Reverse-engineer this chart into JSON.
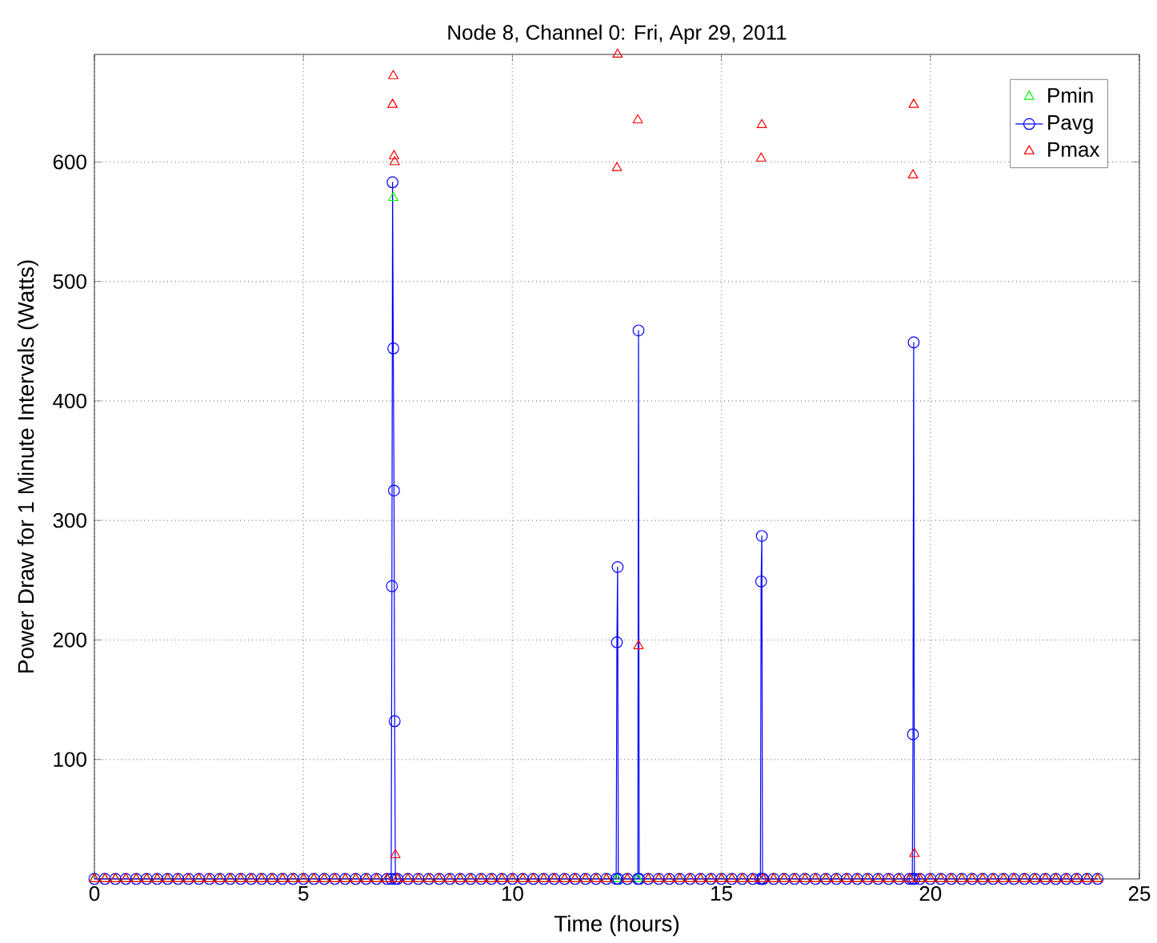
{
  "chart_data": {
    "type": "line",
    "title": "Node 8, Channel 0: Fri, Apr 29, 2011",
    "xlabel": "Time (hours)",
    "ylabel": "Power Draw for 1 Minute Intervals (Watts)",
    "xlim": [
      0,
      25
    ],
    "ylim": [
      0,
      690
    ],
    "xticks": [
      0,
      5,
      10,
      15,
      20,
      25
    ],
    "yticks": [
      100,
      200,
      300,
      400,
      500,
      600
    ],
    "grid": true,
    "legend": "top right",
    "series": [
      {
        "name": "Pmin",
        "type": "scatter",
        "color": "#00ff00",
        "marker": "triangle",
        "x": [
          0,
          0.25,
          0.5,
          0.75,
          1,
          1.25,
          1.5,
          1.75,
          2,
          2.25,
          2.5,
          2.75,
          3,
          3.25,
          3.5,
          3.75,
          4,
          4.25,
          4.5,
          4.75,
          5,
          5.25,
          5.5,
          5.75,
          6,
          6.25,
          6.5,
          6.75,
          7,
          7.15,
          7.25,
          7.5,
          7.75,
          8,
          8.25,
          8.5,
          8.75,
          9,
          9.25,
          9.5,
          9.75,
          10,
          10.25,
          10.5,
          10.75,
          11,
          11.25,
          11.5,
          11.75,
          12,
          12.25,
          12.5,
          12.75,
          13,
          13.25,
          13.5,
          13.75,
          14,
          14.25,
          14.5,
          14.75,
          15,
          15.25,
          15.5,
          15.75,
          16,
          16.25,
          16.5,
          16.75,
          17,
          17.25,
          17.5,
          17.75,
          18,
          18.25,
          18.5,
          18.75,
          19,
          19.25,
          19.5,
          19.75,
          20,
          20.25,
          20.5,
          20.75,
          21,
          21.25,
          21.5,
          21.75,
          22,
          22.25,
          22.5,
          22.75,
          23,
          23.25,
          23.5,
          23.75,
          24
        ],
        "values": [
          0,
          0,
          0,
          0,
          0,
          0,
          0,
          0,
          0,
          0,
          0,
          0,
          0,
          0,
          0,
          0,
          0,
          0,
          0,
          0,
          0,
          0,
          0,
          0,
          0,
          0,
          0,
          0,
          0,
          570,
          0,
          0,
          0,
          0,
          0,
          0,
          0,
          0,
          0,
          0,
          0,
          0,
          0,
          0,
          0,
          0,
          0,
          0,
          0,
          0,
          0,
          0,
          0,
          0,
          0,
          0,
          0,
          0,
          0,
          0,
          0,
          0,
          0,
          0,
          0,
          0,
          0,
          0,
          0,
          0,
          0,
          0,
          0,
          0,
          0,
          0,
          0,
          0,
          0,
          0,
          0,
          0,
          0,
          0,
          0,
          0,
          0,
          0,
          0,
          0,
          0,
          0,
          0,
          0,
          0,
          0,
          0,
          0
        ]
      },
      {
        "name": "Pavg",
        "color": "#0000ff",
        "marker": "circle",
        "line_style": "solid",
        "x": [
          0,
          0.25,
          0.5,
          0.75,
          1,
          1.25,
          1.5,
          1.75,
          2,
          2.25,
          2.5,
          2.75,
          3,
          3.25,
          3.5,
          3.75,
          4,
          4.25,
          4.5,
          4.75,
          5,
          5.25,
          5.5,
          5.75,
          6,
          6.25,
          6.5,
          6.75,
          7,
          7.1,
          7.117,
          7.133,
          7.15,
          7.167,
          7.183,
          7.2,
          7.25,
          7.5,
          7.75,
          8,
          8.25,
          8.5,
          8.75,
          9,
          9.25,
          9.5,
          9.75,
          10,
          10.25,
          10.5,
          10.75,
          11,
          11.25,
          11.5,
          11.75,
          12,
          12.25,
          12.483,
          12.5,
          12.517,
          12.533,
          12.75,
          13,
          13.017,
          13.033,
          13.25,
          13.5,
          13.75,
          14,
          14.25,
          14.5,
          14.75,
          15,
          15.25,
          15.5,
          15.75,
          15.933,
          15.95,
          15.967,
          15.983,
          16,
          16.25,
          16.5,
          16.75,
          17,
          17.25,
          17.5,
          17.75,
          18,
          18.25,
          18.5,
          18.75,
          19,
          19.25,
          19.5,
          19.567,
          19.583,
          19.6,
          19.617,
          19.75,
          20,
          20.25,
          20.5,
          20.75,
          21,
          21.25,
          21.5,
          21.75,
          22,
          22.25,
          22.5,
          22.75,
          23,
          23.25,
          23.5,
          23.75,
          24
        ],
        "values": [
          0,
          0,
          0,
          0,
          0,
          0,
          0,
          0,
          0,
          0,
          0,
          0,
          0,
          0,
          0,
          0,
          0,
          0,
          0,
          0,
          0,
          0,
          0,
          0,
          0,
          0,
          0,
          0,
          0,
          0,
          245,
          583,
          444,
          325,
          132,
          0,
          0,
          0,
          0,
          0,
          0,
          0,
          0,
          0,
          0,
          0,
          0,
          0,
          0,
          0,
          0,
          0,
          0,
          0,
          0,
          0,
          0,
          0,
          198,
          261,
          0,
          0,
          0,
          459,
          0,
          0,
          0,
          0,
          0,
          0,
          0,
          0,
          0,
          0,
          0,
          0,
          0,
          249,
          287,
          0,
          0,
          0,
          0,
          0,
          0,
          0,
          0,
          0,
          0,
          0,
          0,
          0,
          0,
          0,
          0,
          0,
          121,
          449,
          0,
          0,
          0,
          0,
          0,
          0,
          0,
          0,
          0,
          0,
          0,
          0,
          0,
          0,
          0,
          0,
          0,
          0,
          0
        ]
      },
      {
        "name": "Pmax",
        "type": "scatter",
        "color": "#ff0000",
        "marker": "triangle",
        "x": [
          0,
          0.25,
          0.5,
          0.75,
          1,
          1.25,
          1.5,
          1.75,
          2,
          2.25,
          2.5,
          2.75,
          3,
          3.25,
          3.5,
          3.75,
          4,
          4.25,
          4.5,
          4.75,
          5,
          5.25,
          5.5,
          5.75,
          6,
          6.25,
          6.5,
          6.75,
          7,
          7.133,
          7.15,
          7.167,
          7.183,
          7.2,
          7.25,
          7.5,
          7.75,
          8,
          8.25,
          8.5,
          8.75,
          9,
          9.25,
          9.5,
          9.75,
          10,
          10.25,
          10.5,
          10.75,
          11,
          11.25,
          11.5,
          11.75,
          12,
          12.25,
          12.5,
          12.517,
          12.75,
          13,
          13.017,
          13.25,
          13.5,
          13.75,
          14,
          14.25,
          14.5,
          14.75,
          15,
          15.25,
          15.5,
          15.75,
          15.95,
          15.967,
          16,
          16.25,
          16.5,
          16.75,
          17,
          17.25,
          17.5,
          17.75,
          18,
          18.25,
          18.5,
          18.75,
          19,
          19.25,
          19.5,
          19.583,
          19.6,
          19.617,
          19.75,
          20,
          20.25,
          20.5,
          20.75,
          21,
          21.25,
          21.5,
          21.75,
          22,
          22.25,
          22.5,
          22.75,
          23,
          23.25,
          23.5,
          23.75,
          24
        ],
        "values": [
          0,
          0,
          0,
          0,
          0,
          0,
          0,
          0,
          0,
          0,
          0,
          0,
          0,
          0,
          0,
          0,
          0,
          0,
          0,
          0,
          0,
          0,
          0,
          0,
          0,
          0,
          0,
          0,
          0,
          648,
          672,
          605,
          600,
          20,
          0,
          0,
          0,
          0,
          0,
          0,
          0,
          0,
          0,
          0,
          0,
          0,
          0,
          0,
          0,
          0,
          0,
          0,
          0,
          0,
          0,
          595,
          690,
          0,
          635,
          195,
          0,
          0,
          0,
          0,
          0,
          0,
          0,
          0,
          0,
          0,
          0,
          603,
          631,
          0,
          0,
          0,
          0,
          0,
          0,
          0,
          0,
          0,
          0,
          0,
          0,
          0,
          0,
          0,
          589,
          648,
          21,
          0,
          0,
          0,
          0,
          0,
          0,
          0,
          0,
          0,
          0,
          0,
          0,
          0,
          0,
          0,
          0,
          0,
          0
        ]
      }
    ]
  }
}
